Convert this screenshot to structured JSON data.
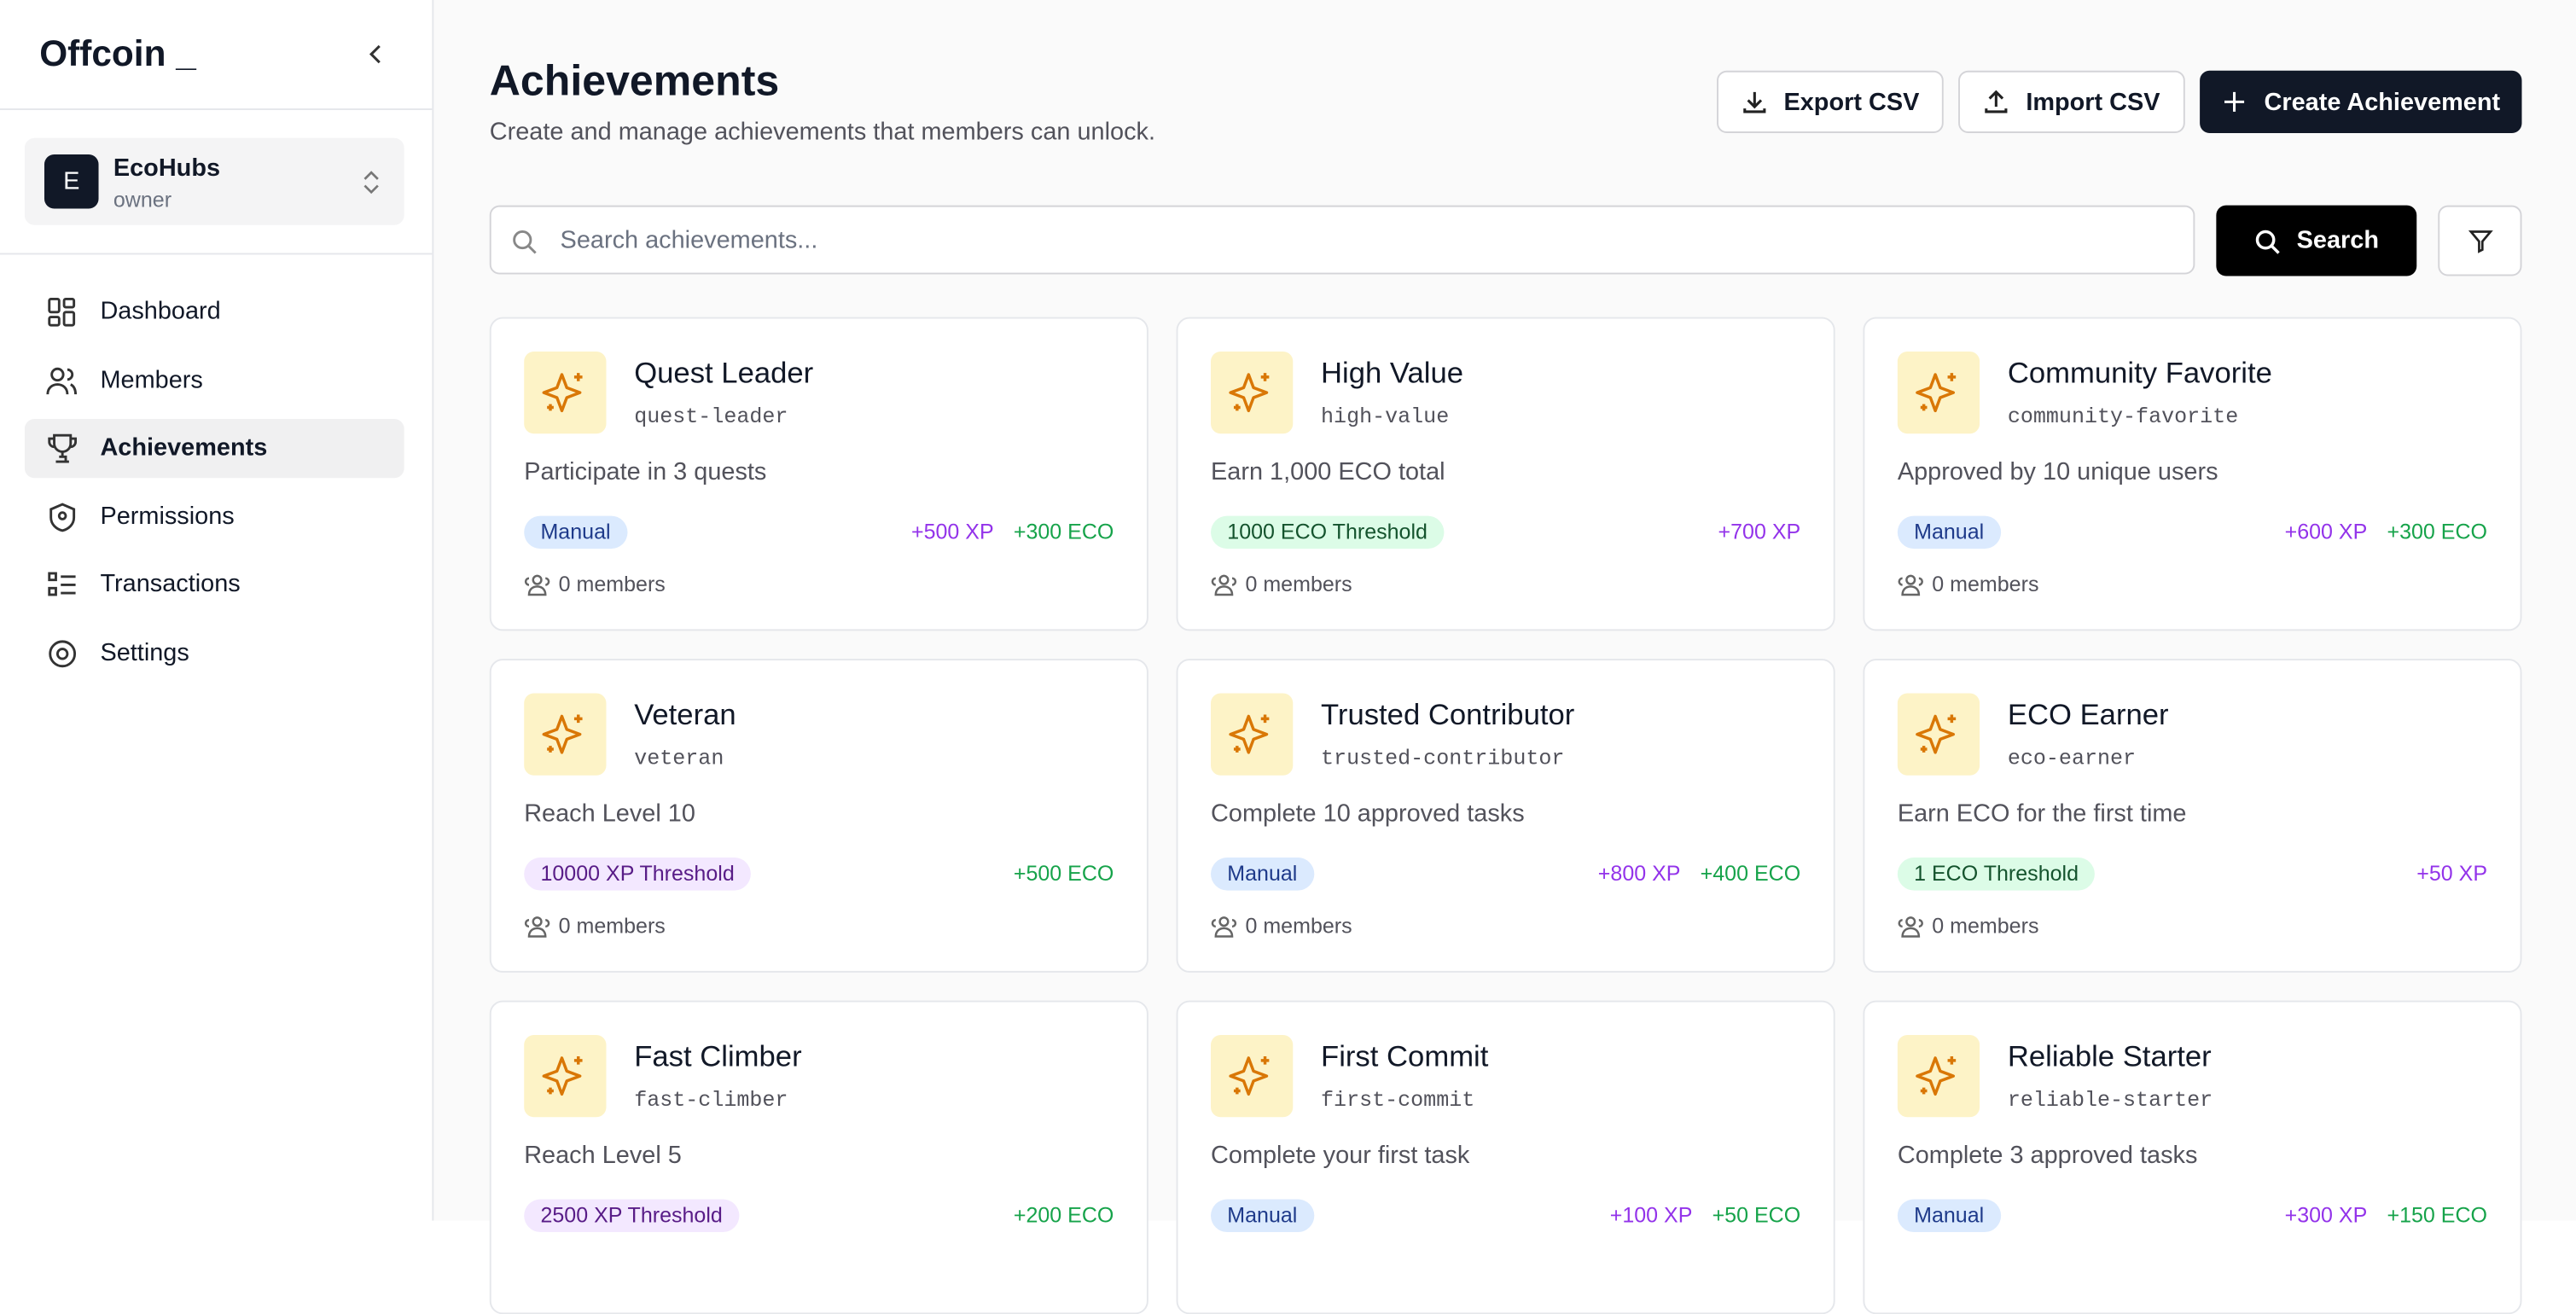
{
  "sidebar": {
    "brand": "Offcoin _",
    "org": {
      "initial": "E",
      "name": "EcoHubs",
      "role": "owner"
    },
    "nav": [
      "Dashboard",
      "Members",
      "Achievements",
      "Permissions",
      "Transactions",
      "Settings"
    ],
    "active": 2
  },
  "header": {
    "title": "Achievements",
    "subtitle": "Create and manage achievements that members can unlock.",
    "buttons": [
      "Export CSV",
      "Import CSV",
      "Create Achievement"
    ]
  },
  "search": {
    "placeholder": "Search achievements...",
    "button": "Search"
  },
  "cards": [
    {
      "name": "Quest Leader",
      "slug": "quest-leader",
      "description": "Participate in 3 quests",
      "badge": "Manual",
      "badge_color": "blue",
      "xp": "+500 XP",
      "eco": "+300 ECO",
      "members": "0 members"
    },
    {
      "name": "High Value",
      "slug": "high-value",
      "description": "Earn 1,000 ECO total",
      "badge": "1000 ECO Threshold",
      "badge_color": "green",
      "xp": "+700 XP",
      "members": "0 members"
    },
    {
      "name": "Community Favorite",
      "slug": "community-favorite",
      "description": "Approved by 10 unique users",
      "badge": "Manual",
      "badge_color": "blue",
      "xp": "+600 XP",
      "eco": "+300 ECO",
      "members": "0 members"
    },
    {
      "name": "Veteran",
      "slug": "veteran",
      "description": "Reach Level 10",
      "badge": "10000 XP Threshold",
      "badge_color": "purple",
      "eco": "+500 ECO",
      "members": "0 members"
    },
    {
      "name": "Trusted Contributor",
      "slug": "trusted-contributor",
      "description": "Complete 10 approved tasks",
      "badge": "Manual",
      "badge_color": "blue",
      "xp": "+800 XP",
      "eco": "+400 ECO",
      "members": "0 members"
    },
    {
      "name": "ECO Earner",
      "slug": "eco-earner",
      "description": "Earn ECO for the first time",
      "badge": "1 ECO Threshold",
      "badge_color": "green",
      "xp": "+50 XP",
      "members": "0 members"
    },
    {
      "name": "Fast Climber",
      "slug": "fast-climber",
      "description": "Reach Level 5",
      "badge": "2500 XP Threshold",
      "badge_color": "purple",
      "eco": "+200 ECO"
    },
    {
      "name": "First Commit",
      "slug": "first-commit",
      "description": "Complete your first task",
      "badge": "Manual",
      "badge_color": "blue",
      "xp": "+100 XP",
      "eco": "+50 ECO"
    },
    {
      "name": "Reliable Starter",
      "slug": "reliable-starter",
      "description": "Complete 3 approved tasks",
      "badge": "Manual",
      "badge_color": "blue",
      "xp": "+300 XP",
      "eco": "+150 ECO"
    }
  ]
}
